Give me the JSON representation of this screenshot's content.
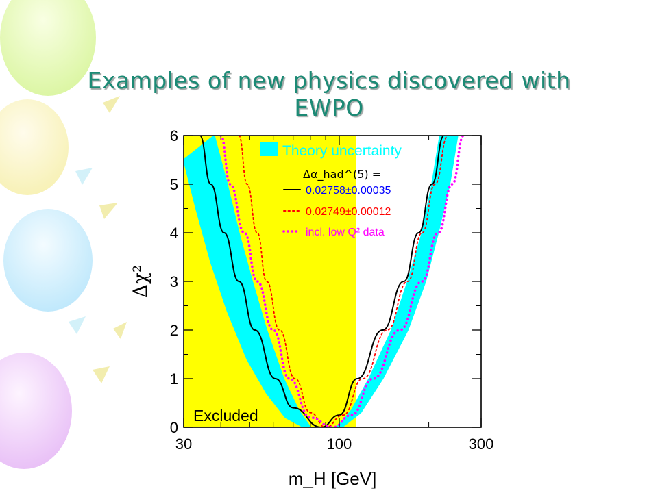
{
  "slide": {
    "title_lines": [
      "Examples of new physics discovered with",
      "EWPO"
    ],
    "background_decoration": "balloons"
  },
  "chart_data": {
    "type": "line",
    "xlabel": "m_H [GeV]",
    "ylabel": "Δχ²",
    "x_scale": "log",
    "xlim": [
      30,
      300
    ],
    "ylim": [
      0,
      6
    ],
    "x_ticks": [
      30,
      100,
      300
    ],
    "y_ticks": [
      0,
      1,
      2,
      3,
      4,
      5,
      6
    ],
    "grid": false,
    "excluded_region": {
      "x_range": [
        30,
        114
      ],
      "label": "Excluded",
      "color": "#ffff00"
    },
    "theory_band": {
      "name": "Theory uncertainty",
      "color": "#00ffff",
      "lower_edge": [
        [
          38,
          6
        ],
        [
          42,
          5
        ],
        [
          46,
          4
        ],
        [
          51,
          3
        ],
        [
          57,
          2
        ],
        [
          65,
          1
        ],
        [
          73,
          0.35
        ],
        [
          80,
          0
        ],
        [
          98,
          0
        ],
        [
          110,
          0.35
        ],
        [
          126,
          1
        ],
        [
          150,
          2
        ],
        [
          170,
          3
        ],
        [
          190,
          4
        ],
        [
          205,
          5
        ],
        [
          218,
          6
        ]
      ],
      "upper_edge": [
        [
          30,
          5.5
        ],
        [
          33,
          4.5
        ],
        [
          37,
          3.4
        ],
        [
          42,
          2.4
        ],
        [
          49,
          1.4
        ],
        [
          57,
          0.7
        ],
        [
          66,
          0.2
        ],
        [
          76,
          0
        ],
        [
          102,
          0
        ],
        [
          118,
          0.3
        ],
        [
          140,
          1
        ],
        [
          170,
          2
        ],
        [
          195,
          3
        ],
        [
          215,
          4
        ],
        [
          235,
          5
        ],
        [
          250,
          6
        ]
      ]
    },
    "legend": {
      "position": "top-right",
      "header": "Δα_had^(5) =",
      "entries": [
        {
          "label": "0.02758±0.00035",
          "color": "#0000ff",
          "line_color": "#000000",
          "style": "solid"
        },
        {
          "label": "0.02749±0.00012",
          "color": "#ff0000",
          "line_color": "#ff0000",
          "style": "dotted"
        },
        {
          "label": "incl. low Q² data",
          "color": "#ff00ff",
          "line_color": "#ff00ff",
          "style": "dotted-dense"
        }
      ]
    },
    "series": [
      {
        "name": "0.02758±0.00035",
        "color": "#000000",
        "dash": "solid",
        "points": [
          [
            34,
            6
          ],
          [
            37,
            5
          ],
          [
            41,
            4
          ],
          [
            46,
            3
          ],
          [
            52,
            2
          ],
          [
            61,
            1
          ],
          [
            70,
            0.4
          ],
          [
            87,
            0
          ],
          [
            100,
            0.25
          ],
          [
            115,
            1
          ],
          [
            140,
            2
          ],
          [
            165,
            3
          ],
          [
            185,
            4
          ],
          [
            205,
            5
          ],
          [
            225,
            6
          ]
        ]
      },
      {
        "name": "0.02749±0.00012",
        "color": "#ff0000",
        "dash": "dotted",
        "points": [
          [
            46,
            6
          ],
          [
            49,
            5
          ],
          [
            53,
            4
          ],
          [
            57,
            3
          ],
          [
            63,
            2
          ],
          [
            71,
            1
          ],
          [
            80,
            0.3
          ],
          [
            90,
            0
          ],
          [
            103,
            0.25
          ],
          [
            120,
            1
          ],
          [
            145,
            2
          ],
          [
            170,
            3
          ],
          [
            190,
            4
          ],
          [
            210,
            5
          ],
          [
            232,
            6
          ]
        ]
      },
      {
        "name": "incl. low Q² data",
        "color": "#ff00ff",
        "dash": "dotted-dense",
        "points": [
          [
            40,
            6
          ],
          [
            43,
            5
          ],
          [
            48,
            4
          ],
          [
            53,
            3
          ],
          [
            60,
            2
          ],
          [
            68,
            1
          ],
          [
            80,
            0.2
          ],
          [
            95,
            0
          ],
          [
            110,
            0.25
          ],
          [
            130,
            1
          ],
          [
            160,
            2
          ],
          [
            190,
            3
          ],
          [
            215,
            4
          ],
          [
            240,
            5
          ],
          [
            262,
            6
          ]
        ]
      }
    ]
  }
}
